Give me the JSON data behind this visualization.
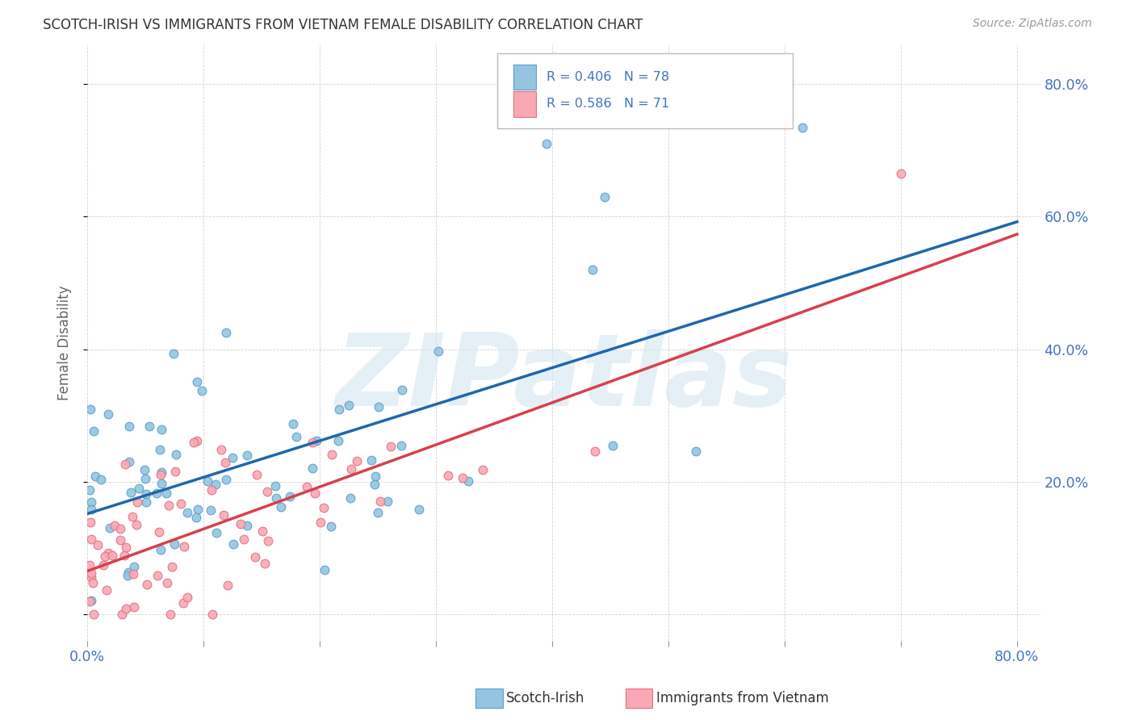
{
  "title": "SCOTCH-IRISH VS IMMIGRANTS FROM VIETNAM FEMALE DISABILITY CORRELATION CHART",
  "source": "Source: ZipAtlas.com",
  "ylabel": "Female Disability",
  "xlim": [
    0.0,
    0.82
  ],
  "ylim": [
    -0.04,
    0.86
  ],
  "yticks": [
    0.0,
    0.2,
    0.4,
    0.6,
    0.8
  ],
  "ytick_labels_right": [
    "",
    "20.0%",
    "40.0%",
    "60.0%",
    "80.0%"
  ],
  "xticks": [
    0.0,
    0.1,
    0.2,
    0.3,
    0.4,
    0.5,
    0.6,
    0.7,
    0.8
  ],
  "xtick_labels": [
    "0.0%",
    "",
    "",
    "",
    "",
    "",
    "",
    "",
    "80.0%"
  ],
  "series1_color": "#94c5e0",
  "series1_edge": "#5b9ec9",
  "series2_color": "#f9a8b4",
  "series2_edge": "#e07080",
  "trendline1_color": "#2166ac",
  "trendline2_color": "#d6404e",
  "watermark": "ZIPatlas",
  "watermark_color": "#d4e5f0",
  "background_color": "#ffffff",
  "grid_color": "#cccccc",
  "title_color": "#333333",
  "axis_color": "#4472c4",
  "series1_name": "Scotch-Irish",
  "series2_name": "Immigrants from Vietnam",
  "R1": 0.406,
  "N1": 78,
  "R2": 0.586,
  "N2": 71,
  "legend_text_color": "#4472c4"
}
